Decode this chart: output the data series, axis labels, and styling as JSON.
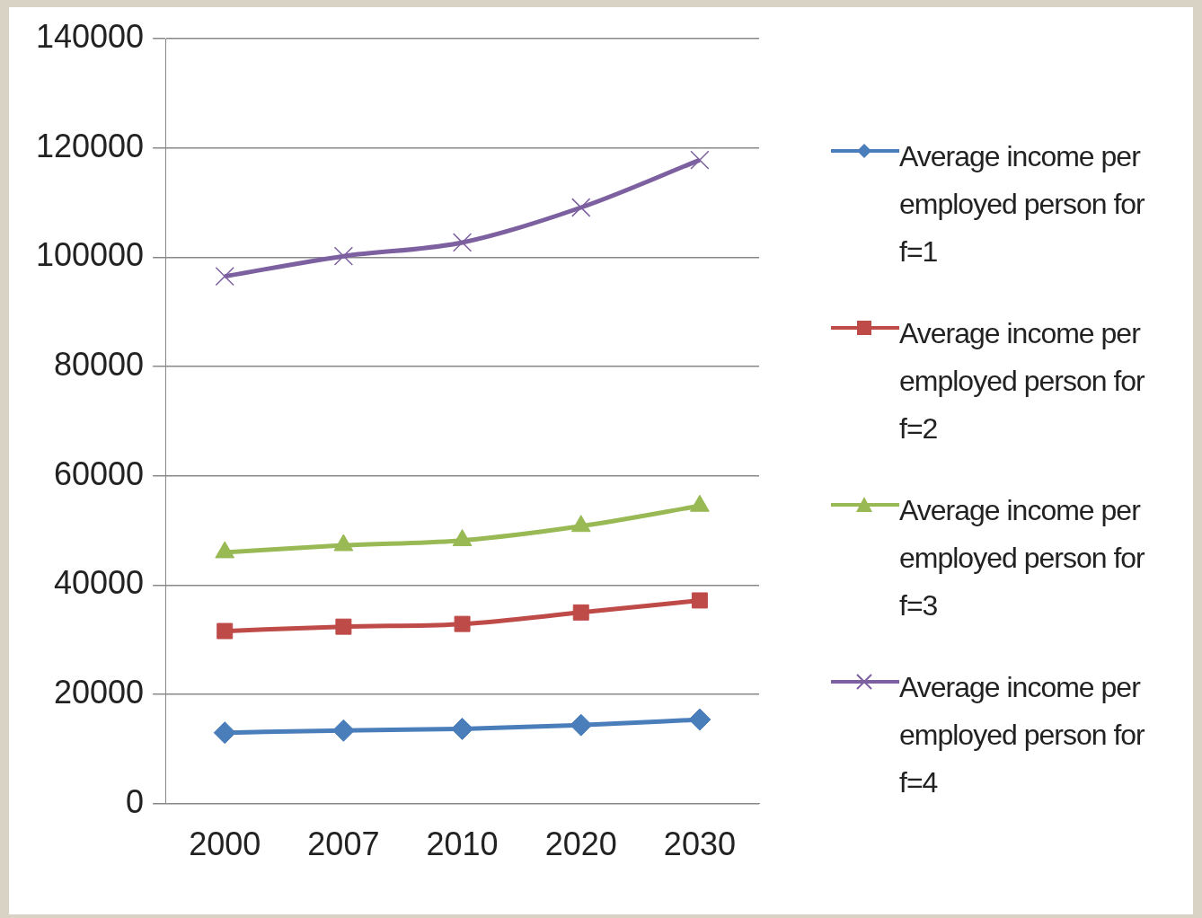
{
  "chart_data": {
    "type": "line",
    "categories": [
      "2000",
      "2007",
      "2010",
      "2020",
      "2030"
    ],
    "series": [
      {
        "name": "Average income per employed person for f=1",
        "color": "#4a7ebb",
        "marker": "diamond",
        "values": [
          13000,
          13400,
          13700,
          14400,
          15400
        ]
      },
      {
        "name": "Average income per employed person for f=2",
        "color": "#be4b48",
        "marker": "square",
        "values": [
          31600,
          32400,
          32900,
          35000,
          37200
        ]
      },
      {
        "name": "Average income per employed person for f=3",
        "color": "#98b954",
        "marker": "triangle",
        "values": [
          46000,
          47300,
          48200,
          50800,
          54500
        ]
      },
      {
        "name": "Average income per employed person for f=4",
        "color": "#7d60a0",
        "marker": "cross",
        "values": [
          96500,
          100200,
          102700,
          109100,
          117800
        ]
      }
    ],
    "ylim": [
      0,
      140000
    ],
    "yticks": [
      0,
      20000,
      40000,
      60000,
      80000,
      100000,
      120000,
      140000
    ],
    "grid": "y",
    "legend": "right"
  }
}
